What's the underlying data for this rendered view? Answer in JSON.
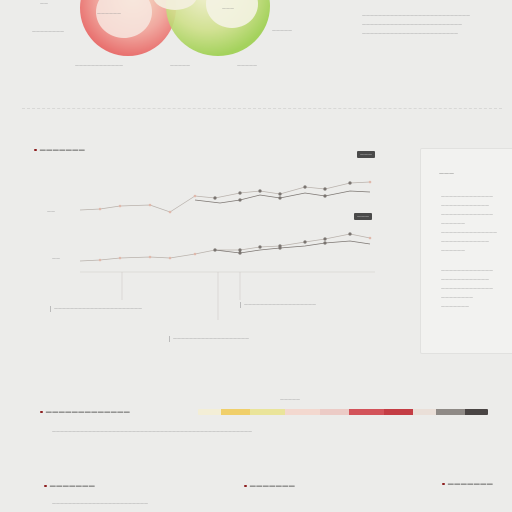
{
  "venn": {
    "left_label": "——————",
    "right_label": "———",
    "side_left": "————————",
    "side_right": "—————",
    "foot_left": "————————————",
    "foot_mid": "—————",
    "foot_right": "—————",
    "top_left": "——"
  },
  "intro_text": [
    "———————————————————————————",
    "—————————————————————————",
    "————————————————————————"
  ],
  "section1": {
    "title": "———————",
    "badge1": "———",
    "badge2": "———",
    "row1_label": "——",
    "row2_label": "——",
    "callouts": [
      "——————————————————————",
      "———————————————————",
      "——————————————————"
    ],
    "side_title": "———",
    "side_paragraphs": [
      [
        "—————————————",
        "————————————",
        "—————————————",
        "——————",
        "——————————————",
        "————————————",
        "——————"
      ],
      [
        "—————————————",
        "————————————",
        "—————————————",
        "————————",
        "———————"
      ]
    ]
  },
  "section2": {
    "title": "—————————————",
    "legend_caption": "—————",
    "desc": "——————————————————————————————————————————————————"
  },
  "bottom": {
    "col1_title": "———————",
    "col1_desc": "————————————————————————",
    "col2_title": "———————",
    "col3_title": "———————"
  },
  "colors": {
    "accent": "#8e1f1f",
    "legend": [
      "#f3eed6",
      "#f0cf6a",
      "#eae49a",
      "#f3d8cf",
      "#eccbc6",
      "#d3535a",
      "#c43d44",
      "#eadfd8",
      "#8f8a86",
      "#4a4544"
    ]
  }
}
